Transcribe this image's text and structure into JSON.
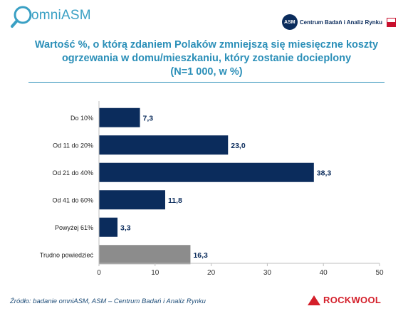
{
  "header": {
    "brand": "omniASM",
    "partner": "Centrum Badań i Analiz Rynku",
    "partner_short": "ASM"
  },
  "title_lines": [
    "Wartość %, o którą zdaniem Polaków zmniejszą się miesięczne koszty",
    "ogrzewania w domu/mieszkaniu, który zostanie docieplony",
    "(N=1 000, w %)"
  ],
  "chart_data": {
    "type": "bar",
    "orientation": "horizontal",
    "categories": [
      "Do 10%",
      "Od 11 do 20%",
      "Od 21 do 40%",
      "Od 41 do 60%",
      "Powyżej 61%",
      "Trudno powiedzieć"
    ],
    "values": [
      7.3,
      23.0,
      38.3,
      11.8,
      3.3,
      16.3
    ],
    "data_labels": [
      "7,3",
      "23,0",
      "38,3",
      "11,8",
      "3,3",
      "16,3"
    ],
    "colors": [
      "#0b2c5c",
      "#0b2c5c",
      "#0b2c5c",
      "#0b2c5c",
      "#0b2c5c",
      "#8c8c8c"
    ],
    "xlim": [
      0,
      50
    ],
    "xticks": [
      0,
      10,
      20,
      30,
      40,
      50
    ],
    "grid": false
  },
  "footer": {
    "source": "Źródło: badanie omniASM, ASM – Centrum Badań i Analiz Rynku",
    "logo": "ROCKWOOL"
  }
}
